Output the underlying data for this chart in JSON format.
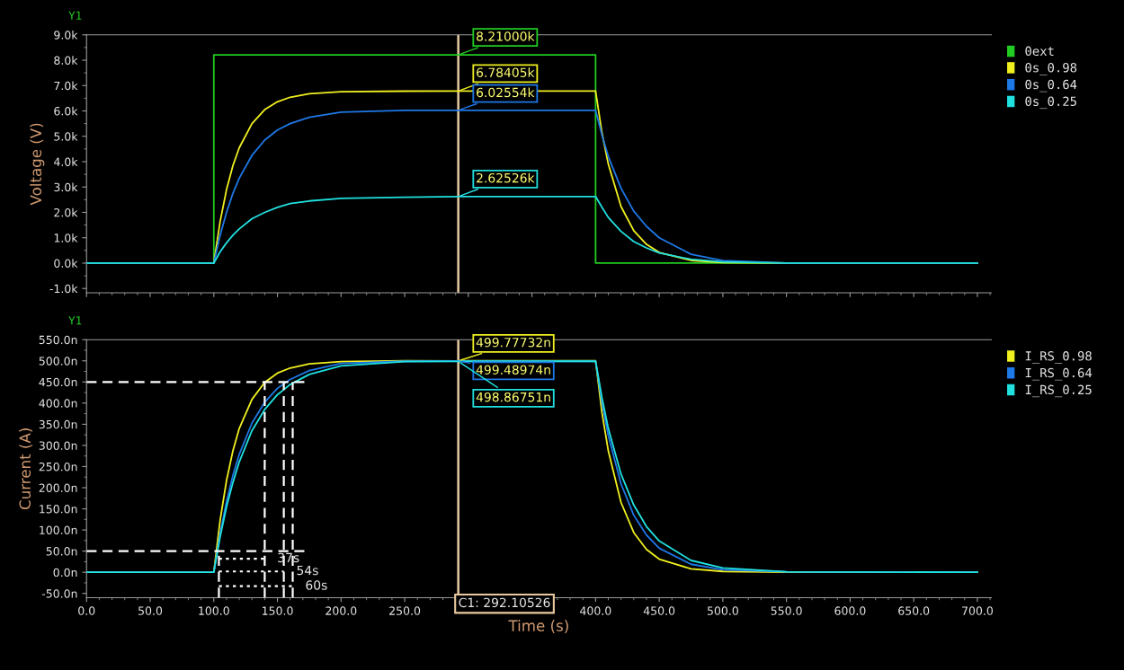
{
  "chart_data": [
    {
      "type": "line",
      "ylabel": "Voltage (V)",
      "annotations": [
        "Y1"
      ],
      "tick_labels": "y",
      "legend": "right",
      "grid": false,
      "x": [
        0,
        100,
        105,
        110,
        115,
        120,
        130,
        140,
        150,
        160,
        175,
        200,
        250,
        292.10526,
        300,
        400,
        405,
        410,
        420,
        430,
        440,
        450,
        475,
        500,
        550,
        700
      ],
      "xlim": [
        0,
        711
      ],
      "xticks": [
        {
          "value": 0,
          "label": null
        },
        {
          "value": 50,
          "label": null
        },
        {
          "value": 100,
          "label": null
        },
        {
          "value": 150,
          "label": null
        },
        {
          "value": 200,
          "label": null
        },
        {
          "value": 250,
          "label": null
        },
        {
          "value": 300,
          "label": null
        },
        {
          "value": 350,
          "label": null
        },
        {
          "value": 400,
          "label": null
        },
        {
          "value": 450,
          "label": null
        },
        {
          "value": 500,
          "label": null
        },
        {
          "value": 550,
          "label": null
        },
        {
          "value": 600,
          "label": null
        },
        {
          "value": 650,
          "label": null
        },
        {
          "value": 700,
          "label": null
        }
      ],
      "ylim": [
        -1170,
        9000
      ],
      "yticks": [
        {
          "value": -1000,
          "label": "-1.0k"
        },
        {
          "value": 0,
          "label": "0.0k"
        },
        {
          "value": 1000,
          "label": "1.0k"
        },
        {
          "value": 2000,
          "label": "2.0k"
        },
        {
          "value": 3000,
          "label": "3.0k"
        },
        {
          "value": 4000,
          "label": "4.0k"
        },
        {
          "value": 5000,
          "label": "5.0k"
        },
        {
          "value": 6000,
          "label": "6.0k"
        },
        {
          "value": 7000,
          "label": "7.0k"
        },
        {
          "value": 8000,
          "label": "8.0k"
        },
        {
          "value": 9000,
          "label": "9.0k"
        }
      ],
      "ref_lines": [
        {
          "axis": "x",
          "value": 292.10526,
          "color": "#e8c9a0"
        }
      ],
      "series": [
        {
          "name": "0ext",
          "color": "#22cc22",
          "x": [
            0,
            100,
            100,
            292.10526,
            400,
            400,
            700
          ],
          "values": [
            0,
            0,
            8210,
            8210,
            8210,
            0,
            0
          ],
          "value_labels": [
            null,
            null,
            null,
            "8.21000k",
            null,
            null,
            null
          ]
        },
        {
          "name": "0s_0.98",
          "color": "#f0f020",
          "values": [
            0,
            0,
            1650,
            2900,
            3840,
            4550,
            5500,
            6050,
            6360,
            6540,
            6680,
            6760,
            6780,
            6784.05,
            6784,
            6784,
            5140,
            3900,
            2230,
            1280,
            740,
            420,
            105,
            25,
            0,
            0
          ],
          "value_labels": [
            null,
            null,
            null,
            null,
            null,
            null,
            null,
            null,
            null,
            null,
            null,
            null,
            null,
            "6.78405k",
            null,
            null,
            null,
            null,
            null,
            null,
            null,
            null,
            null,
            null,
            null,
            null
          ]
        },
        {
          "name": "0s_0.64",
          "color": "#1e78e6",
          "values": [
            0,
            0,
            1100,
            2000,
            2750,
            3350,
            4250,
            4850,
            5250,
            5500,
            5750,
            5950,
            6020,
            6025.54,
            6026,
            6026,
            5050,
            4200,
            2950,
            2050,
            1450,
            1000,
            350,
            100,
            0,
            0
          ],
          "value_labels": [
            null,
            null,
            null,
            null,
            null,
            null,
            null,
            null,
            null,
            null,
            null,
            null,
            null,
            "6.02554k",
            null,
            null,
            null,
            null,
            null,
            null,
            null,
            null,
            null,
            null,
            null,
            null
          ]
        },
        {
          "name": "0s_0.25",
          "color": "#20e0e0",
          "values": [
            0,
            0,
            450,
            800,
            1100,
            1350,
            1750,
            2000,
            2200,
            2350,
            2450,
            2550,
            2600,
            2625.26,
            2625,
            2625,
            2200,
            1800,
            1250,
            850,
            600,
            400,
            150,
            50,
            0,
            0
          ],
          "value_labels": [
            null,
            null,
            null,
            null,
            null,
            null,
            null,
            null,
            null,
            null,
            null,
            null,
            null,
            "2.62526k",
            null,
            null,
            null,
            null,
            null,
            null,
            null,
            null,
            null,
            null,
            null,
            null
          ]
        }
      ]
    },
    {
      "type": "line",
      "xlabel": "Time (s)",
      "ylabel": "Current (A)",
      "legend": "right",
      "grid": false,
      "annotations": [
        "Y1",
        {
          "text": "37s",
          "x": 140,
          "y": 32
        },
        {
          "text": "54s",
          "x": 155,
          "y": 2
        },
        {
          "text": "60s",
          "x": 162,
          "y": -33
        }
      ],
      "x": [
        0,
        100,
        105,
        110,
        115,
        120,
        130,
        140,
        150,
        160,
        175,
        200,
        250,
        292.10526,
        300,
        400,
        405,
        410,
        420,
        430,
        440,
        450,
        475,
        500,
        550,
        700
      ],
      "xlim": [
        0,
        711
      ],
      "xticks": [
        {
          "value": 0,
          "label": "0.0"
        },
        {
          "value": 50,
          "label": "50.0"
        },
        {
          "value": 100,
          "label": "100.0"
        },
        {
          "value": 150,
          "label": "150.0"
        },
        {
          "value": 200,
          "label": "200.0"
        },
        {
          "value": 250,
          "label": "250.0"
        },
        {
          "value": 300,
          "label": null
        },
        {
          "value": 350,
          "label": null
        },
        {
          "value": 400,
          "label": "400.0"
        },
        {
          "value": 450,
          "label": "450.0"
        },
        {
          "value": 500,
          "label": "500.0"
        },
        {
          "value": 550,
          "label": "550.0"
        },
        {
          "value": 600,
          "label": "600.0"
        },
        {
          "value": 650,
          "label": "650.0"
        },
        {
          "value": 700,
          "label": "700.0"
        }
      ],
      "ylim": [
        -60,
        550
      ],
      "yticks": [
        {
          "value": -50,
          "label": "-50.0n"
        },
        {
          "value": 0,
          "label": "0.0n"
        },
        {
          "value": 50,
          "label": "50.0n"
        },
        {
          "value": 100,
          "label": "100.0n"
        },
        {
          "value": 150,
          "label": "150.0n"
        },
        {
          "value": 200,
          "label": "200.0n"
        },
        {
          "value": 250,
          "label": "250.0n"
        },
        {
          "value": 300,
          "label": "300.0n"
        },
        {
          "value": 350,
          "label": "350.0n"
        },
        {
          "value": 400,
          "label": "400.0n"
        },
        {
          "value": 450,
          "label": "450.0n"
        },
        {
          "value": 500,
          "label": "500.0n"
        },
        {
          "value": 550,
          "label": "550.0n"
        }
      ],
      "ref_lines": [
        {
          "axis": "x",
          "value": 292.10526,
          "label": "C1: 292.10526",
          "color": "#e8c9a0"
        }
      ],
      "series": [
        {
          "name": "I_RS_0.98",
          "color": "#f0f020",
          "values": [
            0,
            0,
            124,
            217,
            287,
            340,
            409,
            449,
            471,
            483,
            493,
            498,
            500,
            499.77732,
            500,
            500,
            378,
            287,
            165,
            94,
            54,
            31,
            8,
            2,
            0,
            0
          ],
          "value_labels": [
            null,
            null,
            null,
            null,
            null,
            null,
            null,
            null,
            null,
            null,
            null,
            null,
            null,
            "499.77732n",
            null,
            null,
            null,
            null,
            null,
            null,
            null,
            null,
            null,
            null,
            null,
            null
          ]
        },
        {
          "name": "I_RS_0.64",
          "color": "#1e78e6",
          "values": [
            0,
            0,
            92,
            167,
            229,
            279,
            353,
            402,
            435,
            456,
            477,
            494,
            499,
            499.48974,
            499,
            499,
            402,
            323,
            209,
            135,
            88,
            57,
            19,
            6,
            1,
            0
          ],
          "value_labels": [
            null,
            null,
            null,
            null,
            null,
            null,
            null,
            null,
            null,
            null,
            null,
            null,
            null,
            "499.48974n",
            null,
            null,
            null,
            null,
            null,
            null,
            null,
            null,
            null,
            null,
            null,
            null
          ]
        },
        {
          "name": "I_RS_0.25",
          "color": "#20e0e0",
          "values": [
            0,
            0,
            84,
            155,
            212,
            261,
            335,
            385,
            420,
            444,
            468,
            488,
            498,
            498.86751,
            499,
            499,
            413,
            340,
            232,
            159,
            108,
            74,
            28,
            10,
            1,
            0
          ],
          "value_labels": [
            null,
            null,
            null,
            null,
            null,
            null,
            null,
            null,
            null,
            null,
            null,
            null,
            null,
            "498.86751n",
            null,
            null,
            null,
            null,
            null,
            null,
            null,
            null,
            null,
            null,
            null,
            null
          ]
        },
        {
          "color": "#ffffff",
          "line_style": "dashed",
          "x": [
            0,
            172
          ],
          "values": [
            450,
            450
          ]
        },
        {
          "color": "#ffffff",
          "line_style": "dashed",
          "x": [
            0,
            172
          ],
          "values": [
            50,
            50
          ]
        },
        {
          "color": "#ffffff",
          "line_style": "dashed",
          "x": [
            104,
            104
          ],
          "values": [
            -60,
            50
          ]
        },
        {
          "color": "#ffffff",
          "line_style": "dashed",
          "x": [
            140,
            140
          ],
          "values": [
            -60,
            450
          ]
        },
        {
          "color": "#ffffff",
          "line_style": "dashed",
          "x": [
            155,
            155
          ],
          "values": [
            -60,
            450
          ]
        },
        {
          "color": "#ffffff",
          "line_style": "dashed",
          "x": [
            162,
            162
          ],
          "values": [
            -60,
            450
          ]
        },
        {
          "color": "#ffffff",
          "line_style": "dotted",
          "x": [
            104,
            140
          ],
          "values": [
            32,
            32
          ]
        },
        {
          "color": "#ffffff",
          "line_style": "dotted",
          "x": [
            104,
            155
          ],
          "values": [
            2,
            2
          ]
        },
        {
          "color": "#ffffff",
          "line_style": "dotted",
          "x": [
            104,
            162
          ],
          "values": [
            -33,
            -33
          ]
        }
      ]
    }
  ]
}
